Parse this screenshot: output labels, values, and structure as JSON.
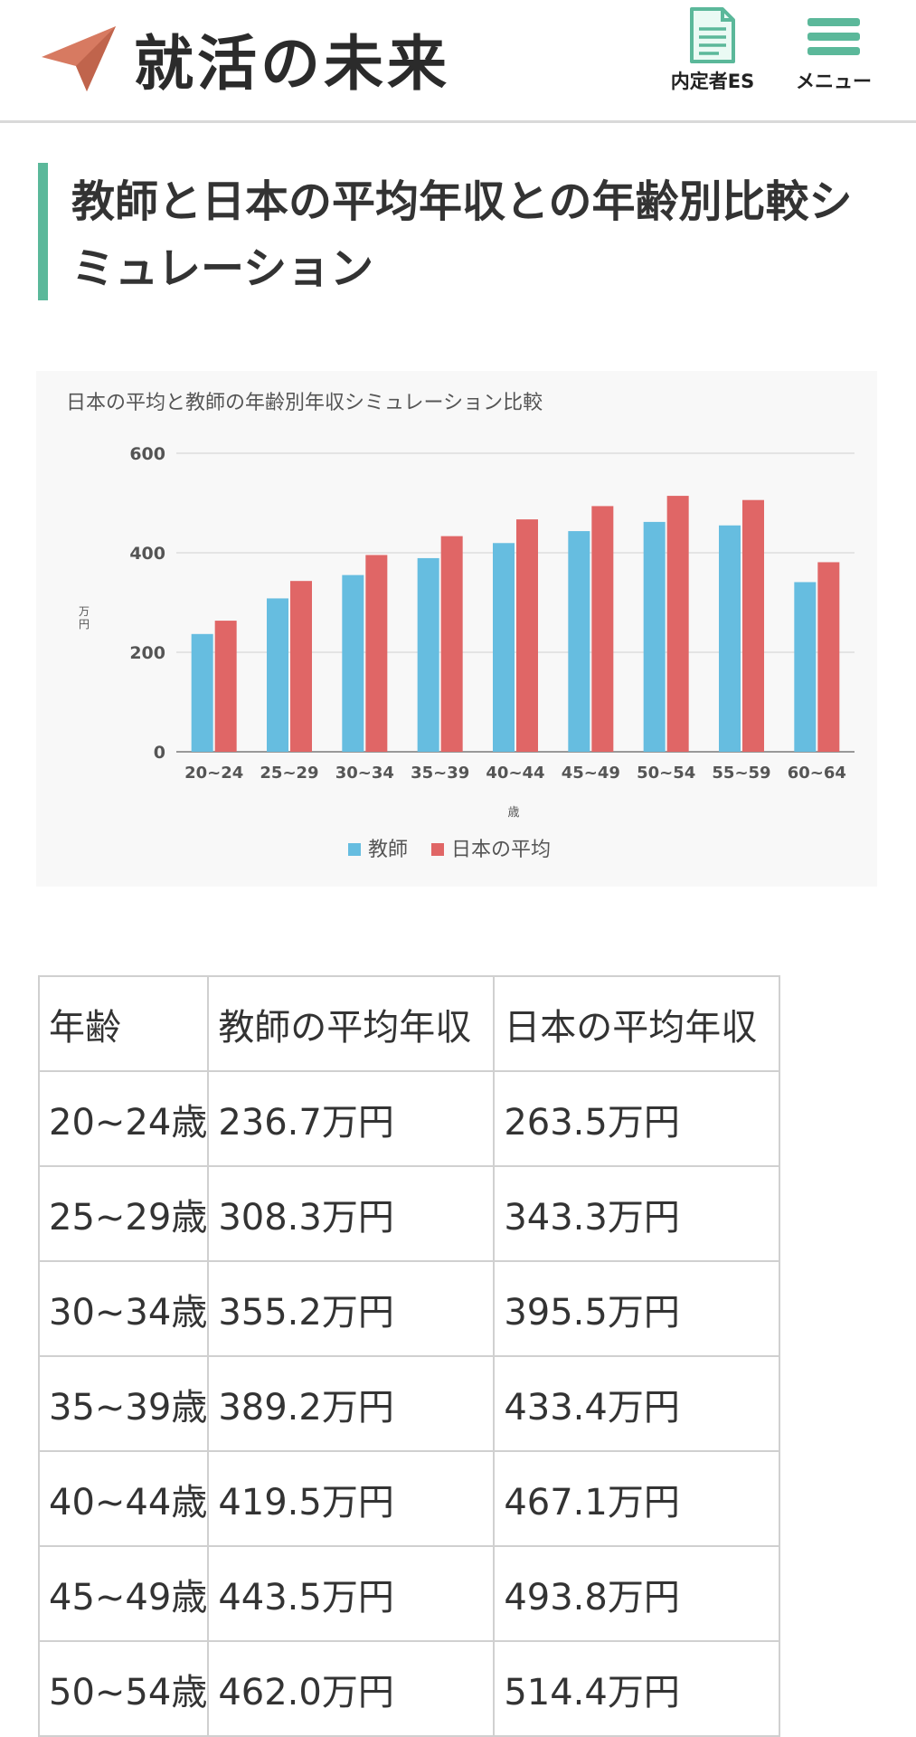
{
  "header": {
    "logo_text": "就活の未来",
    "es_label": "内定者ES",
    "menu_label": "メニュー",
    "brand_color": "#5bb89a",
    "plane_color": "#d77a61"
  },
  "page_title": "教師と日本の平均年収との年齢別比較シミュレーション",
  "chart_data": {
    "type": "bar",
    "title": "日本の平均と教師の年齢別年収シミュレーション比較",
    "xlabel": "歳",
    "ylabel": "万円",
    "ylim": [
      0,
      600
    ],
    "yticks": [
      0,
      200,
      400,
      600
    ],
    "grid": true,
    "legend_position": "bottom",
    "categories": [
      "20~24",
      "25~29",
      "30~34",
      "35~39",
      "40~44",
      "45~49",
      "50~54",
      "55~59",
      "60~64"
    ],
    "series": [
      {
        "name": "教師",
        "color": "#66bde0",
        "values": [
          236.7,
          308.3,
          355.2,
          389.2,
          419.5,
          443.5,
          462.0,
          455,
          341
        ]
      },
      {
        "name": "日本の平均",
        "color": "#e06666",
        "values": [
          263.5,
          343.3,
          395.5,
          433.4,
          467.1,
          493.8,
          514.4,
          506,
          381
        ]
      }
    ]
  },
  "table": {
    "headers": [
      "年齢",
      "教師の平均年収",
      "日本の平均年収"
    ],
    "rows": [
      [
        "20~24歳",
        "236.7万円",
        "263.5万円"
      ],
      [
        "25~29歳",
        "308.3万円",
        "343.3万円"
      ],
      [
        "30~34歳",
        "355.2万円",
        "395.5万円"
      ],
      [
        "35~39歳",
        "389.2万円",
        "433.4万円"
      ],
      [
        "40~44歳",
        "419.5万円",
        "467.1万円"
      ],
      [
        "45~49歳",
        "443.5万円",
        "493.8万円"
      ],
      [
        "50~54歳",
        "462.0万円",
        "514.4万円"
      ]
    ]
  }
}
